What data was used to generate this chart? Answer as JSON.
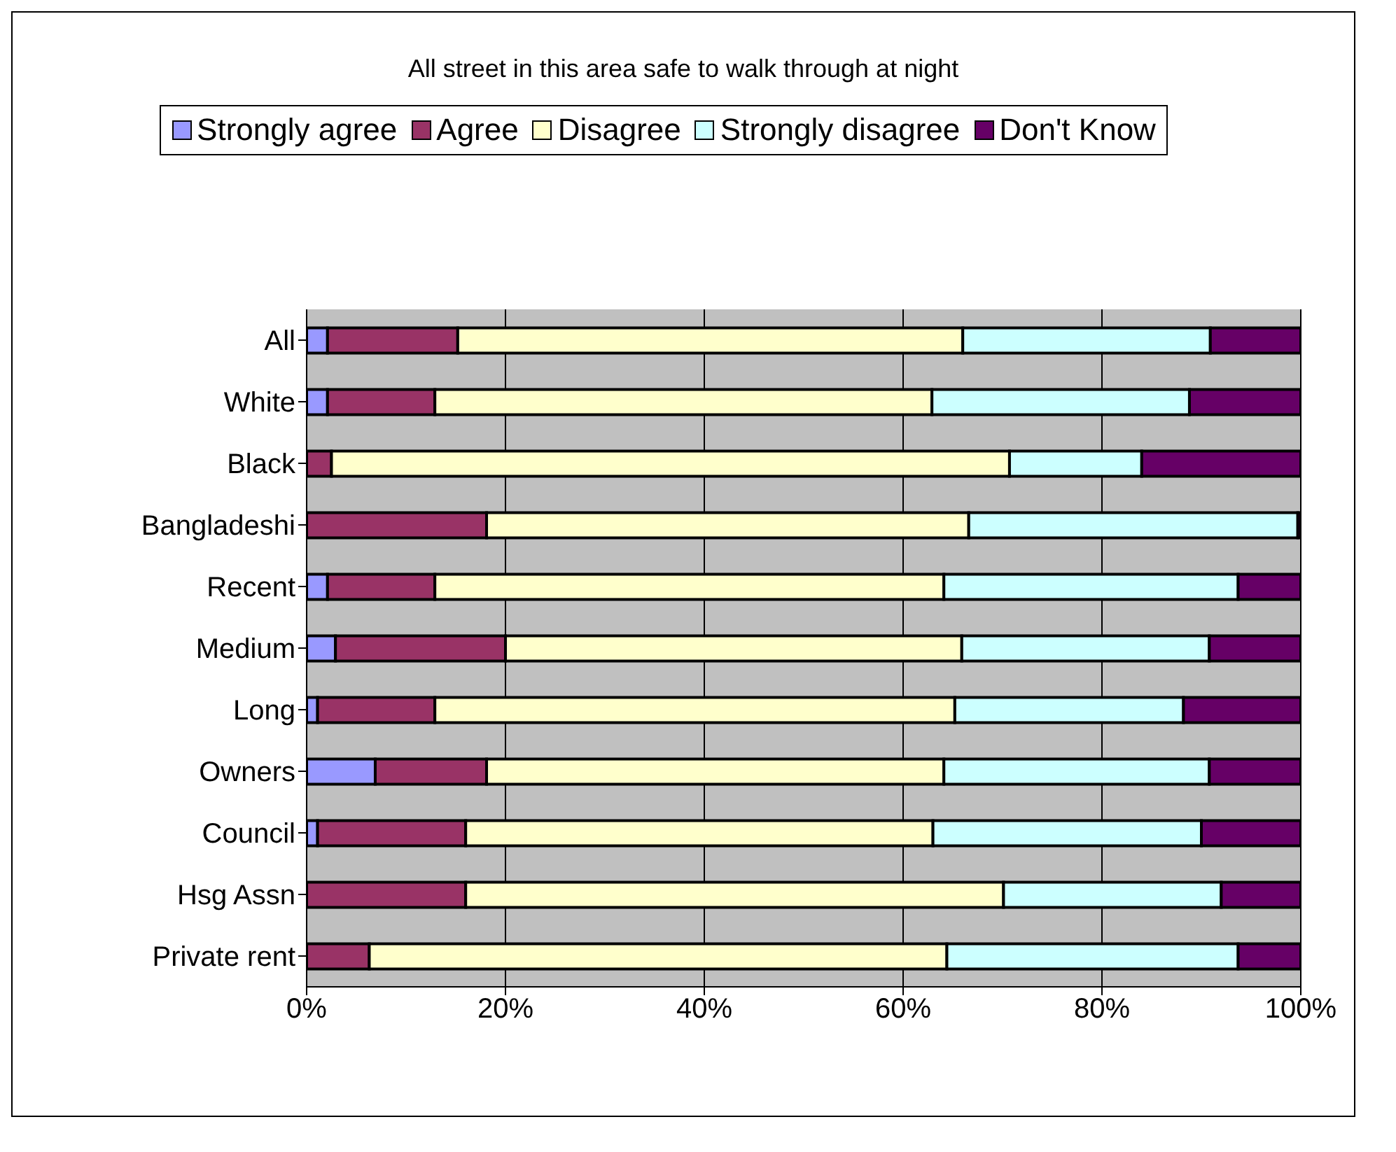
{
  "chart_data": {
    "type": "bar",
    "orientation": "horizontal",
    "stacked": true,
    "title": "All street in this area safe to walk through at night",
    "categories": [
      "All",
      "White",
      "Black",
      "Bangladeshi",
      "Recent",
      "Medium",
      "Long",
      "Owners",
      "Council",
      "Hsg Assn",
      "Private rent"
    ],
    "series": [
      {
        "name": "Strongly agree",
        "color": "#9999ff",
        "values": [
          2.1,
          2.1,
          0,
          0,
          2.1,
          2.9,
          1.1,
          6.9,
          1.1,
          0,
          0
        ]
      },
      {
        "name": "Agree",
        "color": "#993366",
        "values": [
          13.1,
          10.8,
          2.5,
          18.1,
          10.8,
          17.1,
          11.8,
          11.2,
          14.9,
          16.0,
          6.3
        ]
      },
      {
        "name": "Disagree",
        "color": "#ffffcc",
        "values": [
          50.8,
          50.0,
          68.2,
          48.5,
          51.2,
          45.9,
          52.3,
          46.0,
          47.0,
          54.1,
          58.1
        ]
      },
      {
        "name": "Strongly disagree",
        "color": "#ccffff",
        "values": [
          24.9,
          25.9,
          13.3,
          33.1,
          29.6,
          24.9,
          23.0,
          26.7,
          27.0,
          21.9,
          29.3
        ]
      },
      {
        "name": "Don't Know",
        "color": "#660066",
        "values": [
          9.2,
          11.2,
          16.0,
          0.3,
          6.3,
          9.2,
          11.8,
          9.2,
          10.0,
          8.0,
          6.3
        ]
      }
    ],
    "xlim": [
      0,
      100
    ],
    "xticks": [
      {
        "value": 0,
        "label": "0%"
      },
      {
        "value": 20,
        "label": "20%"
      },
      {
        "value": 40,
        "label": "40%"
      },
      {
        "value": 60,
        "label": "60%"
      },
      {
        "value": 80,
        "label": "80%"
      },
      {
        "value": 100,
        "label": "100%"
      }
    ],
    "grid": "x",
    "legend": "top"
  }
}
